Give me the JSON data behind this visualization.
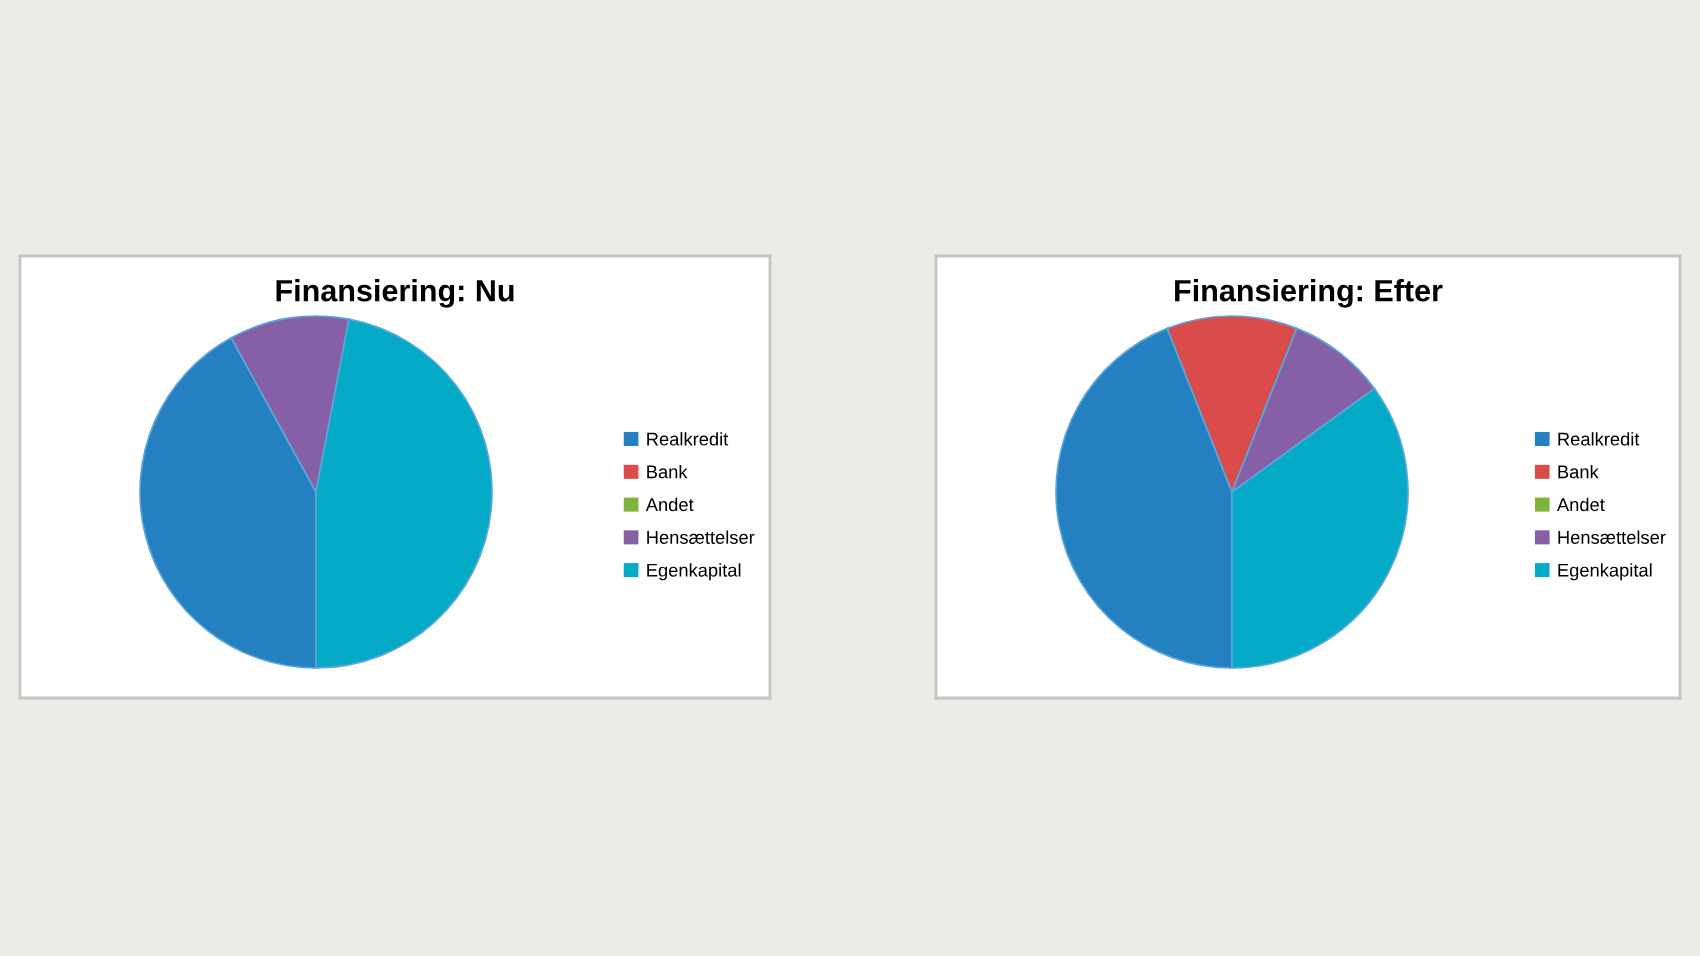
{
  "chart_data": [
    {
      "type": "pie",
      "title": "Finansiering: Nu",
      "categories": [
        "Realkredit",
        "Bank",
        "Andet",
        "Hensættelser",
        "Egenkapital"
      ],
      "values": [
        42,
        0,
        0,
        11,
        47
      ],
      "colors": [
        "#2580c1",
        "#d94c4b",
        "#80b23d",
        "#8560a6",
        "#05abc6"
      ],
      "legend": "right"
    },
    {
      "type": "pie",
      "title": "Finansiering: Efter",
      "categories": [
        "Realkredit",
        "Bank",
        "Andet",
        "Hensættelser",
        "Egenkapital"
      ],
      "values": [
        44,
        12,
        0,
        9,
        35
      ],
      "colors": [
        "#2580c1",
        "#d94c4b",
        "#80b23d",
        "#8560a6",
        "#05abc6"
      ],
      "legend": "right"
    }
  ]
}
